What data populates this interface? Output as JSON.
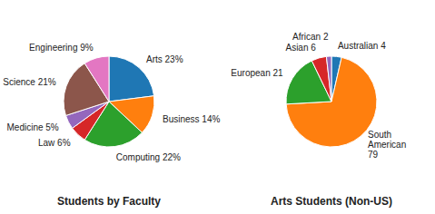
{
  "chart_data": [
    {
      "type": "pie",
      "title": "Students by Faculty",
      "categories": [
        "Arts 23%",
        "Business 14%",
        "Computing 22%",
        "Law 6%",
        "Medicine 5%",
        "Science 21%",
        "Engineering 9%"
      ],
      "values": [
        23,
        14,
        22,
        6,
        5,
        21,
        9
      ]
    },
    {
      "type": "pie",
      "title": "Arts Students (Non-US)",
      "categories": [
        "Australian 4",
        "South\nAmerican\n79",
        "European 21",
        "Asian 6",
        "African 2"
      ],
      "values": [
        4,
        79,
        21,
        6,
        2
      ]
    }
  ]
}
